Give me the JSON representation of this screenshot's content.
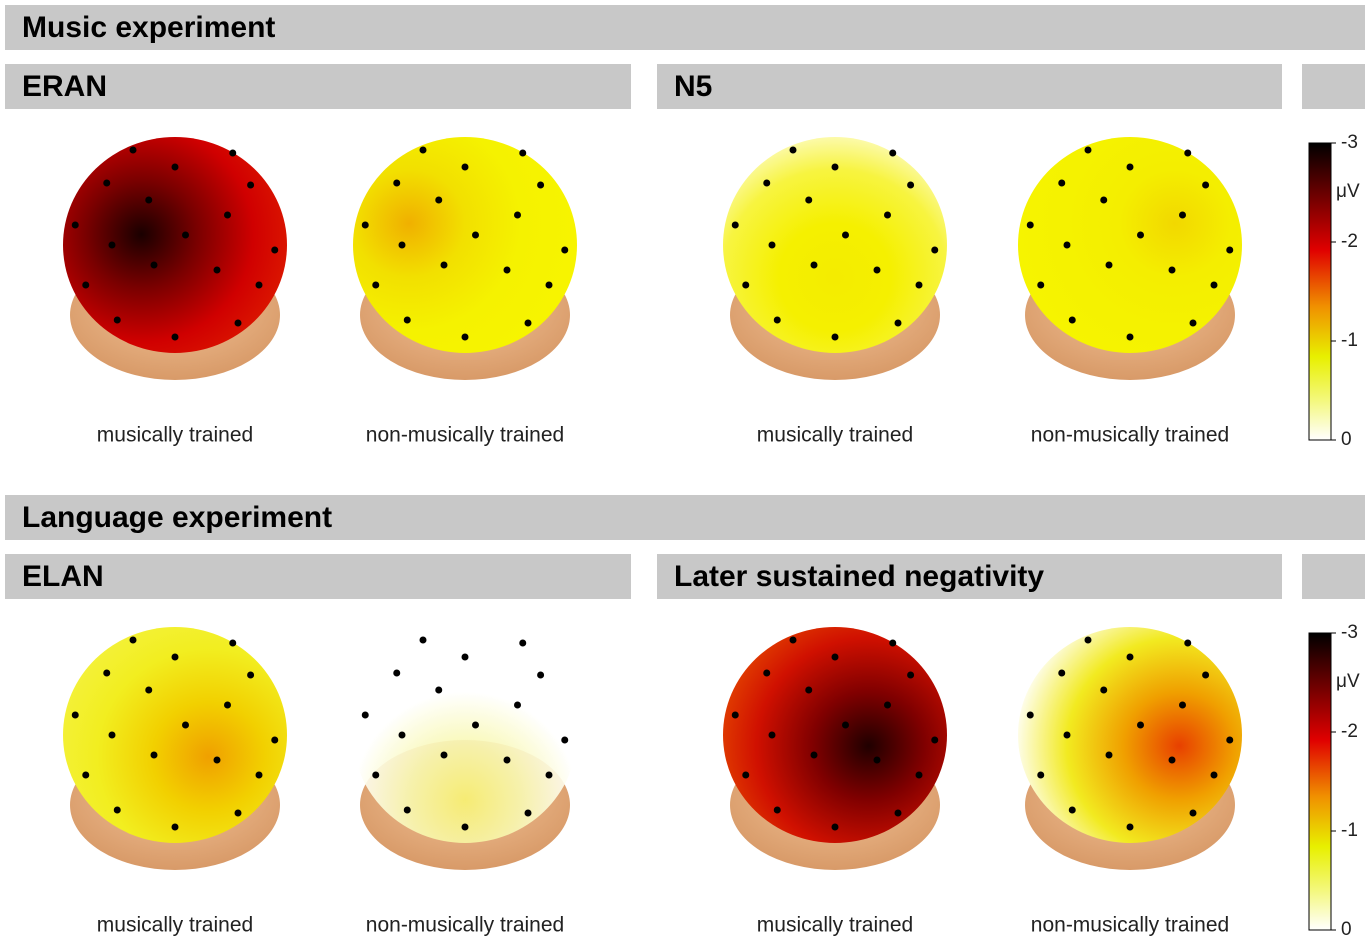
{
  "sections": [
    {
      "title": "Music experiment",
      "panels": [
        {
          "title": "ERAN",
          "heads": [
            {
              "label": "musically trained"
            },
            {
              "label": "non-musically trained"
            }
          ]
        },
        {
          "title": "N5",
          "heads": [
            {
              "label": "musically trained"
            },
            {
              "label": "non-musically trained"
            }
          ]
        }
      ],
      "colorbar": {
        "ticks": [
          -3,
          -2,
          -1,
          0
        ],
        "unit": "μV"
      }
    },
    {
      "title": "Language experiment",
      "panels": [
        {
          "title": "ELAN",
          "heads": [
            {
              "label": "musically trained"
            },
            {
              "label": "non-musically trained"
            }
          ]
        },
        {
          "title": "Later sustained negativity",
          "heads": [
            {
              "label": "musically trained"
            },
            {
              "label": "non-musically trained"
            }
          ]
        }
      ],
      "colorbar": {
        "ticks": [
          -3,
          -2,
          -1,
          0
        ],
        "unit": "μV"
      }
    }
  ]
}
